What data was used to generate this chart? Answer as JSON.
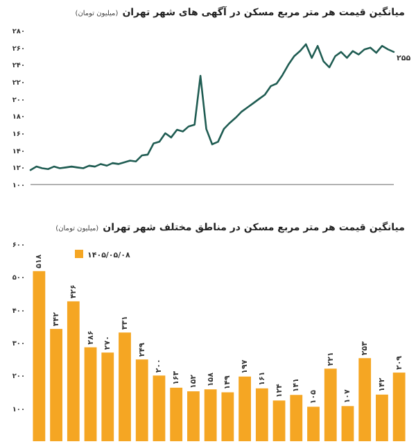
{
  "chart_data": [
    {
      "type": "line",
      "title": "میانگین قیمت هر متر مربع مسکن در آگهی های شهر تهران",
      "subtitle": "(میلیون تومان)",
      "categories": [
        null,
        null,
        null,
        null,
        null,
        null,
        null,
        null,
        null,
        null,
        null,
        null,
        null,
        null,
        null,
        null,
        null,
        null,
        null,
        null,
        null,
        null,
        null,
        null,
        null,
        null,
        null,
        null,
        null,
        null,
        null,
        null,
        null,
        null,
        null,
        null,
        null,
        null,
        null,
        null,
        null,
        null,
        null,
        null,
        null,
        null,
        null,
        null,
        null,
        null,
        null,
        null,
        null,
        null,
        null,
        null,
        null,
        null,
        null,
        null,
        null,
        null,
        null
      ],
      "series": [
        {
          "color": "#1f5c52",
          "values": [
            117,
            121,
            119,
            118,
            121,
            119,
            120,
            121,
            120,
            119,
            122,
            121,
            124,
            122,
            125,
            124,
            126,
            128,
            127,
            134,
            135,
            148,
            150,
            160,
            155,
            164,
            162,
            168,
            170,
            227,
            165,
            147,
            150,
            165,
            172,
            178,
            185,
            190,
            195,
            200,
            205,
            215,
            218,
            228,
            240,
            250,
            256,
            264,
            248,
            262,
            244,
            237,
            250,
            255,
            248,
            256,
            252,
            258,
            260,
            254,
            262,
            258,
            255
          ],
          "value_labels": [
            null,
            null,
            null,
            null,
            null,
            null,
            null,
            null,
            null,
            null,
            null,
            null,
            null,
            null,
            null,
            null,
            null,
            null,
            null,
            null,
            null,
            null,
            null,
            null,
            null,
            null,
            null,
            null,
            null,
            null,
            null,
            null,
            null,
            null,
            null,
            null,
            null,
            null,
            null,
            null,
            null,
            null,
            null,
            null,
            null,
            null,
            null,
            null,
            null,
            null,
            null,
            null,
            null,
            null,
            null,
            null,
            null,
            null,
            null,
            null,
            null,
            null,
            "۲۵۵"
          ]
        }
      ],
      "ylim": [
        100,
        280
      ],
      "yticks": [
        {
          "value": 100,
          "label": "۱۰۰"
        },
        {
          "value": 120,
          "label": "۱۲۰"
        },
        {
          "value": 140,
          "label": "۱۴۰"
        },
        {
          "value": 160,
          "label": "۱۶۰"
        },
        {
          "value": 180,
          "label": "۱۸۰"
        },
        {
          "value": 200,
          "label": "۲۰۰"
        },
        {
          "value": 220,
          "label": "۲۲۰"
        },
        {
          "value": 240,
          "label": "۲۴۰"
        },
        {
          "value": 260,
          "label": "۲۶۰"
        },
        {
          "value": 280,
          "label": "۲۸۰"
        }
      ],
      "grid": false,
      "legend": false
    },
    {
      "type": "bar",
      "title": "میانگین قیمت هر متر مربع مسکن در مناطق مختلف شهر تهران",
      "subtitle": "(میلیون تومان)",
      "categories": [
        null,
        null,
        null,
        null,
        null,
        null,
        null,
        null,
        null,
        null,
        null,
        null,
        null,
        null,
        null,
        null,
        null,
        null,
        null,
        null,
        null,
        null
      ],
      "series": [
        {
          "name": "۱۴۰۵/۰۵/۰۸",
          "color": "#f5a623",
          "values": [
            518,
            342,
            426,
            286,
            270,
            331,
            249,
            200,
            163,
            152,
            158,
            149,
            197,
            161,
            124,
            141,
            105,
            221,
            107,
            253,
            142,
            209
          ],
          "value_labels": [
            "۵۱۸",
            "۳۴۲",
            "۴۲۶",
            "۲۸۶",
            "۲۷۰",
            "۳۳۱",
            "۲۴۹",
            "۲۰۰",
            "۱۶۳",
            "۱۵۲",
            "۱۵۸",
            "۱۴۹",
            "۱۹۷",
            "۱۶۱",
            "۱۲۴",
            "۱۴۱",
            "۱۰۵",
            "۲۲۱",
            "۱۰۷",
            "۲۵۳",
            "۱۴۲",
            "۲۰۹"
          ]
        }
      ],
      "ylim": [
        0,
        600
      ],
      "yticks": [
        {
          "value": 100,
          "label": "۱۰۰"
        },
        {
          "value": 200,
          "label": "۲۰۰"
        },
        {
          "value": 300,
          "label": "۳۰۰"
        },
        {
          "value": 400,
          "label": "۴۰۰"
        },
        {
          "value": 500,
          "label": "۵۰۰"
        },
        {
          "value": 600,
          "label": "۶۰۰"
        }
      ],
      "grid": false,
      "legend": "top left"
    }
  ]
}
